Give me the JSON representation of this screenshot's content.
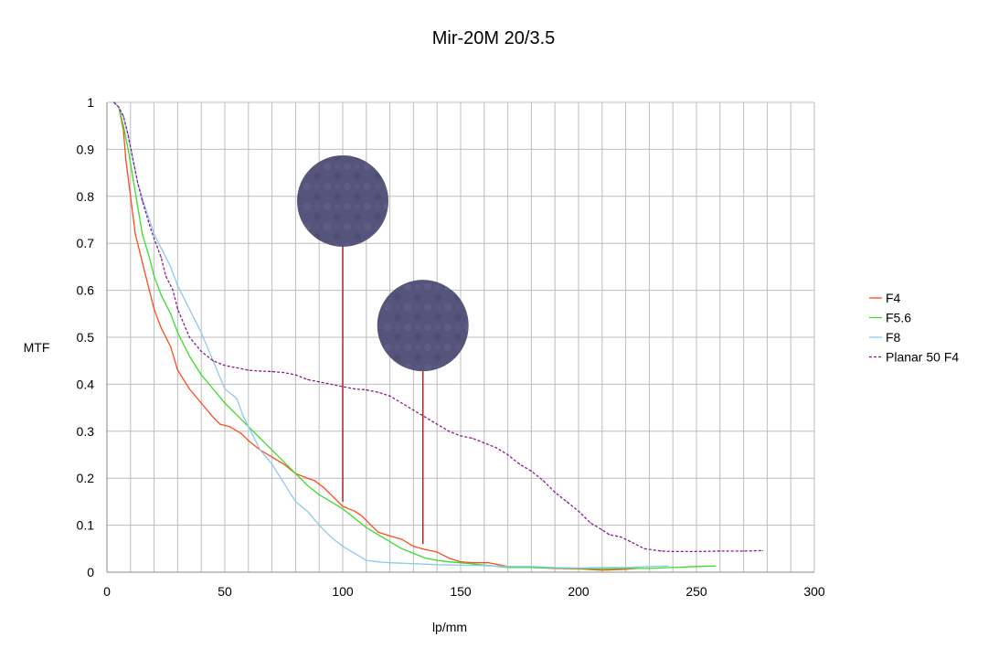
{
  "chart_data": {
    "type": "line",
    "title": "Mir-20M 20/3.5",
    "xlabel": "lp/mm",
    "ylabel": "MTF",
    "xlim": [
      0,
      300
    ],
    "ylim": [
      0,
      1
    ],
    "x_ticks": [
      0,
      50,
      100,
      150,
      200,
      250,
      300
    ],
    "x_tick_labels": [
      "0",
      "50",
      "100",
      "150",
      "200",
      "250",
      "300"
    ],
    "y_ticks": [
      0,
      0.1,
      0.2,
      0.3,
      0.4,
      0.5,
      0.6,
      0.7,
      0.8,
      0.9,
      1
    ],
    "y_tick_labels": [
      "0",
      "0.1",
      "0.2",
      "0.3",
      "0.4",
      "0.5",
      "0.6",
      "0.7",
      "0.8",
      "0.9",
      "1"
    ],
    "grid": true,
    "vertical_gridline_step": 10,
    "legend_position": "right",
    "series": [
      {
        "name": "F4",
        "color": "#ff4a1f",
        "style": "solid",
        "points": [
          [
            3,
            1
          ],
          [
            5,
            0.99
          ],
          [
            7,
            0.94
          ],
          [
            8,
            0.88
          ],
          [
            10,
            0.8
          ],
          [
            12,
            0.72
          ],
          [
            15,
            0.66
          ],
          [
            18,
            0.6
          ],
          [
            20,
            0.56
          ],
          [
            23,
            0.52
          ],
          [
            27,
            0.48
          ],
          [
            30,
            0.43
          ],
          [
            35,
            0.39
          ],
          [
            40,
            0.36
          ],
          [
            45,
            0.33
          ],
          [
            48,
            0.315
          ],
          [
            52,
            0.31
          ],
          [
            57,
            0.295
          ],
          [
            60,
            0.28
          ],
          [
            65,
            0.26
          ],
          [
            70,
            0.245
          ],
          [
            75,
            0.23
          ],
          [
            80,
            0.21
          ],
          [
            85,
            0.2
          ],
          [
            88,
            0.195
          ],
          [
            92,
            0.18
          ],
          [
            95,
            0.165
          ],
          [
            100,
            0.14
          ],
          [
            105,
            0.13
          ],
          [
            108,
            0.12
          ],
          [
            112,
            0.1
          ],
          [
            115,
            0.085
          ],
          [
            120,
            0.077
          ],
          [
            125,
            0.07
          ],
          [
            130,
            0.055
          ],
          [
            135,
            0.048
          ],
          [
            140,
            0.043
          ],
          [
            145,
            0.03
          ],
          [
            150,
            0.022
          ],
          [
            155,
            0.02
          ],
          [
            162,
            0.02
          ],
          [
            170,
            0.012
          ],
          [
            180,
            0.01
          ],
          [
            190,
            0.008
          ],
          [
            200,
            0.007
          ],
          [
            210,
            0.004
          ],
          [
            220,
            0.006
          ],
          [
            225,
            0.008
          ]
        ]
      },
      {
        "name": "F5.6",
        "color": "#3cdc2a",
        "style": "solid",
        "points": [
          [
            3,
            1
          ],
          [
            5,
            0.99
          ],
          [
            7,
            0.95
          ],
          [
            9,
            0.9
          ],
          [
            11,
            0.84
          ],
          [
            13,
            0.78
          ],
          [
            15,
            0.72
          ],
          [
            18,
            0.67
          ],
          [
            20,
            0.63
          ],
          [
            23,
            0.59
          ],
          [
            27,
            0.55
          ],
          [
            30,
            0.51
          ],
          [
            35,
            0.46
          ],
          [
            40,
            0.42
          ],
          [
            45,
            0.39
          ],
          [
            50,
            0.36
          ],
          [
            55,
            0.335
          ],
          [
            60,
            0.31
          ],
          [
            65,
            0.285
          ],
          [
            70,
            0.26
          ],
          [
            75,
            0.235
          ],
          [
            80,
            0.21
          ],
          [
            85,
            0.185
          ],
          [
            90,
            0.165
          ],
          [
            95,
            0.15
          ],
          [
            100,
            0.135
          ],
          [
            105,
            0.115
          ],
          [
            110,
            0.095
          ],
          [
            115,
            0.08
          ],
          [
            120,
            0.065
          ],
          [
            125,
            0.05
          ],
          [
            130,
            0.04
          ],
          [
            135,
            0.03
          ],
          [
            140,
            0.025
          ],
          [
            145,
            0.022
          ],
          [
            150,
            0.02
          ],
          [
            160,
            0.015
          ],
          [
            170,
            0.01
          ],
          [
            180,
            0.01
          ],
          [
            190,
            0.009
          ],
          [
            200,
            0.008
          ],
          [
            210,
            0.007
          ],
          [
            220,
            0.008
          ],
          [
            230,
            0.008
          ],
          [
            240,
            0.01
          ],
          [
            250,
            0.012
          ],
          [
            258,
            0.013
          ]
        ]
      },
      {
        "name": "F8",
        "color": "#8ec9ee",
        "style": "solid",
        "points": [
          [
            3,
            1
          ],
          [
            5,
            0.99
          ],
          [
            7,
            0.97
          ],
          [
            9,
            0.93
          ],
          [
            11,
            0.88
          ],
          [
            13,
            0.83
          ],
          [
            16,
            0.78
          ],
          [
            20,
            0.72
          ],
          [
            23,
            0.69
          ],
          [
            27,
            0.65
          ],
          [
            30,
            0.61
          ],
          [
            35,
            0.56
          ],
          [
            40,
            0.51
          ],
          [
            45,
            0.45
          ],
          [
            50,
            0.39
          ],
          [
            55,
            0.37
          ],
          [
            58,
            0.33
          ],
          [
            62,
            0.29
          ],
          [
            65,
            0.26
          ],
          [
            70,
            0.23
          ],
          [
            75,
            0.19
          ],
          [
            80,
            0.15
          ],
          [
            85,
            0.13
          ],
          [
            90,
            0.1
          ],
          [
            95,
            0.075
          ],
          [
            100,
            0.055
          ],
          [
            105,
            0.04
          ],
          [
            110,
            0.025
          ],
          [
            115,
            0.022
          ],
          [
            120,
            0.02
          ],
          [
            130,
            0.018
          ],
          [
            140,
            0.016
          ],
          [
            150,
            0.015
          ],
          [
            160,
            0.014
          ],
          [
            170,
            0.012
          ],
          [
            180,
            0.012
          ],
          [
            190,
            0.01
          ],
          [
            200,
            0.009
          ],
          [
            210,
            0.01
          ],
          [
            220,
            0.01
          ],
          [
            230,
            0.012
          ],
          [
            238,
            0.013
          ]
        ]
      },
      {
        "name": "Planar 50 F4",
        "color": "#8b1a8b",
        "style": "dashed",
        "points": [
          [
            3,
            1
          ],
          [
            5,
            0.99
          ],
          [
            7,
            0.97
          ],
          [
            9,
            0.93
          ],
          [
            11,
            0.88
          ],
          [
            13,
            0.83
          ],
          [
            15,
            0.79
          ],
          [
            18,
            0.74
          ],
          [
            20,
            0.71
          ],
          [
            23,
            0.67
          ],
          [
            25,
            0.63
          ],
          [
            28,
            0.6
          ],
          [
            30,
            0.56
          ],
          [
            35,
            0.5
          ],
          [
            40,
            0.47
          ],
          [
            45,
            0.45
          ],
          [
            50,
            0.44
          ],
          [
            55,
            0.435
          ],
          [
            60,
            0.43
          ],
          [
            65,
            0.428
          ],
          [
            70,
            0.427
          ],
          [
            75,
            0.425
          ],
          [
            80,
            0.42
          ],
          [
            85,
            0.41
          ],
          [
            90,
            0.405
          ],
          [
            95,
            0.4
          ],
          [
            100,
            0.395
          ],
          [
            105,
            0.39
          ],
          [
            110,
            0.388
          ],
          [
            115,
            0.383
          ],
          [
            120,
            0.375
          ],
          [
            125,
            0.36
          ],
          [
            130,
            0.345
          ],
          [
            135,
            0.33
          ],
          [
            140,
            0.315
          ],
          [
            145,
            0.3
          ],
          [
            150,
            0.29
          ],
          [
            155,
            0.285
          ],
          [
            160,
            0.275
          ],
          [
            165,
            0.265
          ],
          [
            170,
            0.25
          ],
          [
            175,
            0.23
          ],
          [
            180,
            0.215
          ],
          [
            185,
            0.195
          ],
          [
            190,
            0.17
          ],
          [
            195,
            0.15
          ],
          [
            200,
            0.13
          ],
          [
            205,
            0.105
          ],
          [
            210,
            0.09
          ],
          [
            213,
            0.08
          ],
          [
            218,
            0.075
          ],
          [
            222,
            0.065
          ],
          [
            228,
            0.05
          ],
          [
            235,
            0.045
          ],
          [
            240,
            0.044
          ],
          [
            250,
            0.044
          ],
          [
            260,
            0.045
          ],
          [
            270,
            0.045
          ],
          [
            278,
            0.046
          ]
        ]
      }
    ],
    "annotations": [
      {
        "type": "sample-disc",
        "x": 100,
        "y_center": 0.79,
        "y_low": 0.15,
        "line_color": "#b22222",
        "fill": "#55547a"
      },
      {
        "type": "sample-disc",
        "x": 134,
        "y_center": 0.525,
        "y_low": 0.06,
        "line_color": "#b22222",
        "fill": "#55547a"
      }
    ]
  }
}
